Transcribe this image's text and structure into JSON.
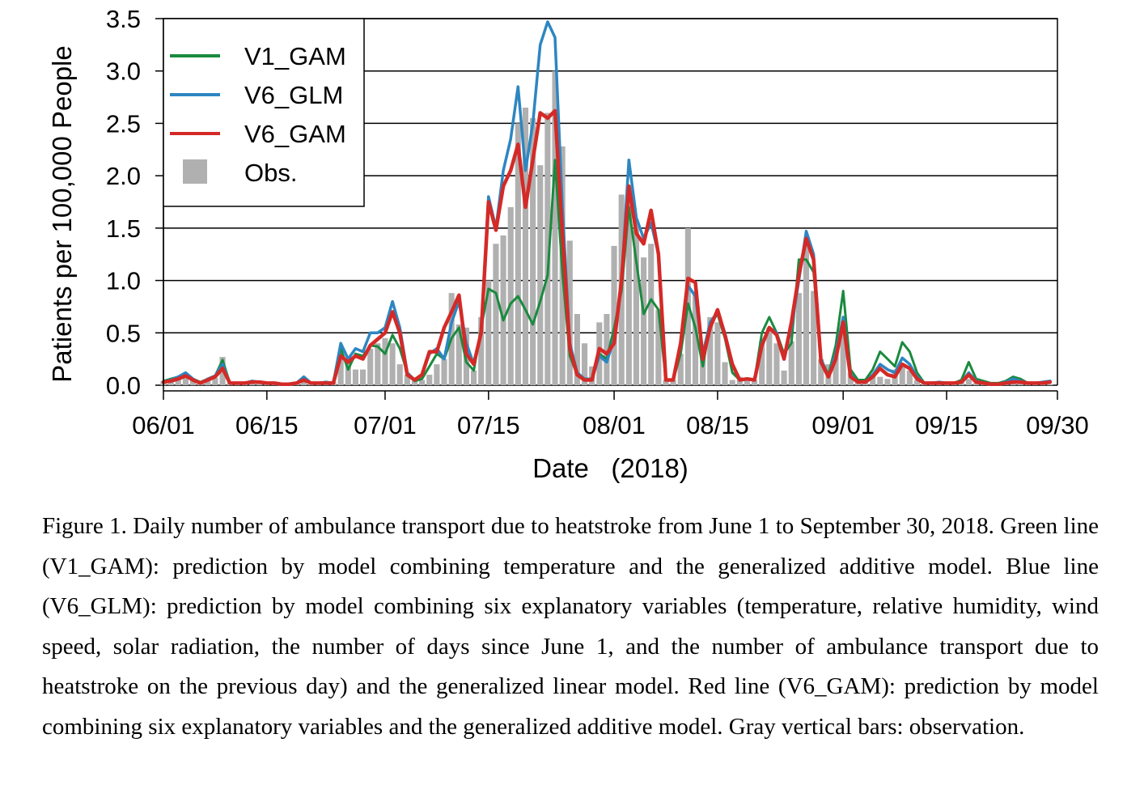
{
  "chart_data": {
    "type": "bar+line",
    "xlabel": "Date   (2018)",
    "ylabel": "Patients per 100,000 People",
    "ylim": [
      0,
      3.5
    ],
    "yticks": [
      "0.0",
      "0.5",
      "1.0",
      "1.5",
      "2.0",
      "2.5",
      "3.0",
      "3.5"
    ],
    "xlim_days": [
      0,
      121
    ],
    "xticks": [
      {
        "day": 0,
        "label": "06/01"
      },
      {
        "day": 14,
        "label": "06/15"
      },
      {
        "day": 30,
        "label": "07/01"
      },
      {
        "day": 44,
        "label": "07/15"
      },
      {
        "day": 61,
        "label": "08/01"
      },
      {
        "day": 75,
        "label": "08/15"
      },
      {
        "day": 92,
        "label": "09/01"
      },
      {
        "day": 106,
        "label": "09/15"
      },
      {
        "day": 121,
        "label": "09/30"
      }
    ],
    "grid": "horizontal",
    "legend_position": "top-left",
    "obs_color": "#b0b0b0",
    "obs_label": "Obs.",
    "obs_values": [
      0.04,
      0.05,
      0.06,
      0.08,
      0.05,
      0.02,
      0.05,
      0.07,
      0.27,
      0.03,
      0.02,
      0.02,
      0.03,
      0.03,
      0.02,
      0.02,
      0.01,
      0.02,
      0.02,
      0.06,
      0.03,
      0.02,
      0.01,
      0.03,
      0.3,
      0.25,
      0.15,
      0.15,
      0.35,
      0.4,
      0.45,
      0.4,
      0.2,
      0.1,
      0.05,
      0.05,
      0.1,
      0.2,
      0.25,
      0.88,
      0.58,
      0.55,
      0.14,
      0.65,
      1.0,
      1.35,
      1.43,
      1.7,
      2.5,
      2.65,
      2.55,
      2.1,
      2.6,
      3.0,
      2.28,
      1.38,
      0.68,
      0.4,
      0.18,
      0.6,
      0.68,
      1.33,
      1.82,
      1.82,
      1.57,
      1.22,
      1.35,
      0.72,
      0.05,
      0.05,
      0.3,
      1.5,
      0.9,
      0.35,
      0.65,
      0.6,
      0.22,
      0.05,
      0.08,
      0.07,
      0.05,
      0.42,
      0.55,
      0.4,
      0.14,
      0.42,
      0.88,
      1.38,
      0.9,
      0.25,
      0.2,
      0.3,
      0.5,
      0.12,
      0.05,
      0.03,
      0.1,
      0.08,
      0.06,
      0.15,
      0.2,
      0.14,
      0.05,
      0.02,
      0.03,
      0.02,
      0.02,
      0.02,
      0.03,
      0.06,
      0.02,
      0.01,
      0.01,
      0.01,
      0.04,
      0.05,
      0.02,
      0.01,
      0.01,
      0.01,
      0.01
    ],
    "series": [
      {
        "name": "V1_GAM",
        "color": "#1a8a3e",
        "width": 3,
        "values": [
          0.04,
          0.06,
          0.08,
          0.1,
          0.06,
          0.03,
          0.06,
          0.09,
          0.24,
          0.02,
          0.02,
          0.02,
          0.03,
          0.03,
          0.02,
          0.02,
          0.01,
          0.01,
          0.02,
          0.06,
          0.02,
          0.02,
          0.03,
          0.02,
          0.35,
          0.15,
          0.3,
          0.28,
          0.38,
          0.37,
          0.3,
          0.48,
          0.35,
          0.12,
          0.04,
          0.06,
          0.18,
          0.3,
          0.25,
          0.45,
          0.55,
          0.22,
          0.14,
          0.55,
          0.92,
          0.88,
          0.62,
          0.78,
          0.85,
          0.72,
          0.58,
          0.8,
          1.05,
          2.15,
          1.08,
          0.28,
          0.1,
          0.06,
          0.06,
          0.3,
          0.25,
          0.55,
          0.9,
          1.7,
          1.18,
          0.68,
          0.82,
          0.72,
          0.05,
          0.05,
          0.3,
          0.78,
          0.55,
          0.18,
          0.58,
          0.68,
          0.45,
          0.12,
          0.05,
          0.06,
          0.05,
          0.5,
          0.65,
          0.5,
          0.3,
          0.4,
          1.2,
          1.2,
          1.08,
          0.25,
          0.1,
          0.38,
          0.9,
          0.15,
          0.05,
          0.05,
          0.15,
          0.32,
          0.25,
          0.18,
          0.41,
          0.32,
          0.12,
          0.02,
          0.02,
          0.03,
          0.02,
          0.02,
          0.05,
          0.22,
          0.06,
          0.04,
          0.02,
          0.02,
          0.04,
          0.08,
          0.06,
          0.02,
          0.02,
          0.02,
          0.03
        ]
      },
      {
        "name": "V6_GLM",
        "color": "#2e86c1",
        "width": 3.5,
        "values": [
          0.03,
          0.05,
          0.08,
          0.12,
          0.06,
          0.02,
          0.06,
          0.09,
          0.2,
          0.02,
          0.02,
          0.02,
          0.04,
          0.03,
          0.02,
          0.02,
          0.01,
          0.01,
          0.02,
          0.08,
          0.02,
          0.02,
          0.03,
          0.02,
          0.4,
          0.25,
          0.35,
          0.32,
          0.5,
          0.5,
          0.55,
          0.8,
          0.55,
          0.12,
          0.05,
          0.1,
          0.3,
          0.35,
          0.25,
          0.6,
          0.8,
          0.4,
          0.2,
          0.5,
          1.8,
          1.5,
          2.05,
          2.35,
          2.85,
          2.05,
          2.5,
          3.25,
          3.47,
          3.32,
          1.7,
          0.4,
          0.12,
          0.06,
          0.06,
          0.28,
          0.22,
          0.45,
          1.0,
          2.15,
          1.6,
          1.4,
          1.55,
          1.25,
          0.05,
          0.05,
          0.4,
          0.95,
          0.85,
          0.3,
          0.6,
          0.7,
          0.5,
          0.2,
          0.05,
          0.06,
          0.05,
          0.4,
          0.55,
          0.5,
          0.25,
          0.55,
          1.0,
          1.47,
          1.25,
          0.25,
          0.08,
          0.3,
          0.65,
          0.1,
          0.03,
          0.03,
          0.1,
          0.2,
          0.15,
          0.12,
          0.26,
          0.2,
          0.08,
          0.02,
          0.02,
          0.03,
          0.02,
          0.02,
          0.03,
          0.12,
          0.04,
          0.02,
          0.01,
          0.01,
          0.03,
          0.06,
          0.04,
          0.02,
          0.02,
          0.03,
          0.04
        ]
      },
      {
        "name": "V6_GAM",
        "color": "#d42a27",
        "width": 4.5,
        "values": [
          0.03,
          0.04,
          0.06,
          0.09,
          0.05,
          0.02,
          0.05,
          0.08,
          0.16,
          0.02,
          0.02,
          0.02,
          0.03,
          0.03,
          0.02,
          0.02,
          0.01,
          0.01,
          0.02,
          0.05,
          0.02,
          0.02,
          0.02,
          0.02,
          0.28,
          0.22,
          0.28,
          0.25,
          0.38,
          0.44,
          0.5,
          0.7,
          0.5,
          0.1,
          0.05,
          0.1,
          0.32,
          0.32,
          0.55,
          0.7,
          0.86,
          0.3,
          0.2,
          0.5,
          1.75,
          1.48,
          1.9,
          2.05,
          2.3,
          1.7,
          2.15,
          2.6,
          2.55,
          2.62,
          1.45,
          0.35,
          0.1,
          0.05,
          0.05,
          0.35,
          0.3,
          0.4,
          1.0,
          1.9,
          1.45,
          1.35,
          1.67,
          1.25,
          0.05,
          0.05,
          0.4,
          1.02,
          0.98,
          0.25,
          0.55,
          0.72,
          0.48,
          0.2,
          0.05,
          0.06,
          0.05,
          0.38,
          0.55,
          0.48,
          0.25,
          0.6,
          1.05,
          1.4,
          1.2,
          0.22,
          0.08,
          0.25,
          0.6,
          0.08,
          0.03,
          0.03,
          0.08,
          0.16,
          0.1,
          0.08,
          0.2,
          0.16,
          0.06,
          0.02,
          0.02,
          0.02,
          0.02,
          0.02,
          0.03,
          0.1,
          0.03,
          0.02,
          0.01,
          0.01,
          0.02,
          0.03,
          0.03,
          0.02,
          0.02,
          0.02,
          0.03
        ]
      }
    ]
  },
  "caption": "Figure 1. Daily number of ambulance transport due to heatstroke from June 1 to September 30, 2018. Green line (V1_GAM): prediction by model combining temperature and the generalized additive model. Blue line (V6_GLM): prediction by model combining six explanatory variables (temperature, relative humidity, wind speed, solar radiation, the number of days since June 1, and the number of ambulance transport due to heatstroke on the previous day) and the generalized linear model. Red line (V6_GAM): prediction by model combining six explanatory variables and the generalized additive model. Gray vertical bars: observation."
}
